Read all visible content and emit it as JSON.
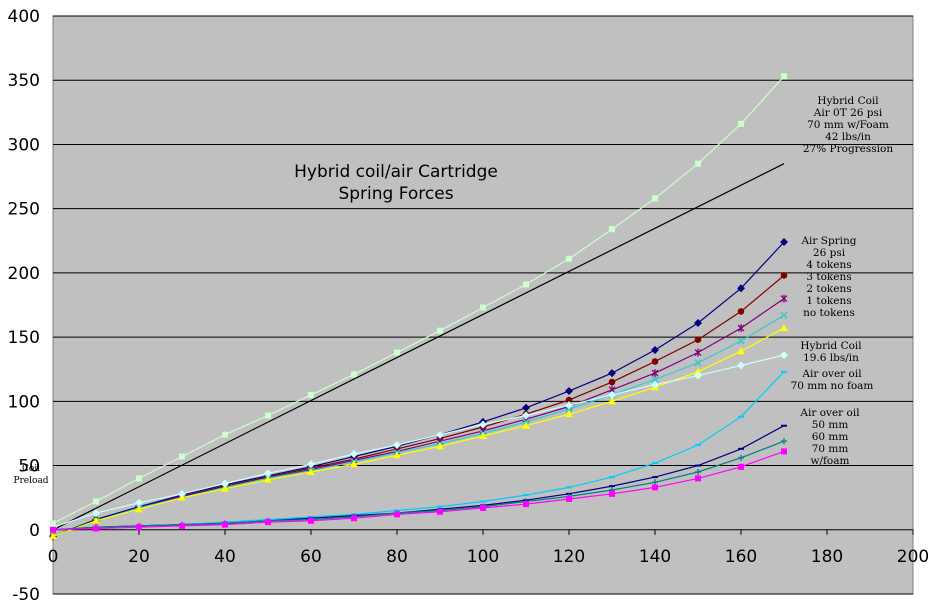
{
  "chart_data": {
    "type": "line",
    "title": [
      "Hybrid coil/air Cartridge",
      "Spring Forces"
    ],
    "xlim": [
      0,
      200
    ],
    "ylim": [
      -50,
      400
    ],
    "x_ticks": [
      "0",
      "20",
      "40",
      "60",
      "80",
      "100",
      "120",
      "140",
      "160",
      "180",
      "200"
    ],
    "y_ticks": [
      "-50",
      "0",
      "50",
      "100",
      "150",
      "200",
      "250",
      "300",
      "350",
      "400"
    ],
    "grid": "horizontal",
    "plot_background": "#c0c0c0",
    "series": [
      {
        "color": "#ccffcc",
        "marker": "square",
        "x": [
          0,
          10,
          20,
          30,
          40,
          50,
          60,
          70,
          80,
          90,
          100,
          110,
          120,
          130,
          140,
          150,
          160,
          170
        ],
        "y": [
          5,
          22,
          40,
          57,
          74,
          89,
          105,
          121,
          138,
          155,
          173,
          191,
          211,
          234,
          258,
          285,
          316,
          353
        ]
      },
      {
        "color": "#000000",
        "marker": "none",
        "x": [
          0,
          170
        ],
        "y": [
          0,
          285
        ]
      },
      {
        "color": "#000080",
        "marker": "diamond",
        "x": [
          0,
          10,
          20,
          30,
          40,
          50,
          60,
          70,
          80,
          90,
          100,
          110,
          120,
          130,
          140,
          150,
          160,
          170
        ],
        "y": [
          -5,
          8,
          18,
          27,
          35,
          42,
          49,
          57,
          65,
          74,
          84,
          95,
          108,
          122,
          140,
          161,
          188,
          224
        ]
      },
      {
        "color": "#800000",
        "marker": "circle",
        "x": [
          0,
          10,
          20,
          30,
          40,
          50,
          60,
          70,
          80,
          90,
          100,
          110,
          120,
          130,
          140,
          150,
          160,
          170
        ],
        "y": [
          -5,
          7,
          17,
          26,
          34,
          41,
          48,
          55,
          63,
          71,
          80,
          90,
          101,
          115,
          131,
          148,
          170,
          198
        ]
      },
      {
        "color": "#800080",
        "marker": "star",
        "x": [
          0,
          10,
          20,
          30,
          40,
          50,
          60,
          70,
          80,
          90,
          100,
          110,
          120,
          130,
          140,
          150,
          160,
          170
        ],
        "y": [
          -5,
          7,
          17,
          26,
          33,
          40,
          47,
          54,
          61,
          69,
          77,
          86,
          96,
          109,
          122,
          138,
          157,
          180
        ]
      },
      {
        "color": "#33cccc",
        "marker": "x",
        "x": [
          0,
          10,
          20,
          30,
          40,
          50,
          60,
          70,
          80,
          90,
          100,
          110,
          120,
          130,
          140,
          150,
          160,
          170
        ],
        "y": [
          -5,
          7,
          17,
          25,
          33,
          40,
          46,
          53,
          60,
          67,
          75,
          84,
          94,
          105,
          117,
          130,
          147,
          167
        ]
      },
      {
        "color": "#ffff00",
        "marker": "triangle",
        "x": [
          0,
          10,
          20,
          30,
          40,
          50,
          60,
          70,
          80,
          90,
          100,
          110,
          120,
          130,
          140,
          150,
          160,
          170
        ],
        "y": [
          -5,
          7,
          16,
          25,
          32,
          39,
          45,
          51,
          58,
          65,
          73,
          81,
          90,
          100,
          111,
          123,
          139,
          157
        ]
      },
      {
        "color": "#ccffff",
        "marker": "diamond",
        "x": [
          0,
          10,
          20,
          30,
          40,
          50,
          60,
          70,
          80,
          90,
          100,
          110,
          120,
          130,
          140,
          150,
          160,
          170
        ],
        "y": [
          2,
          13,
          21,
          28,
          36,
          44,
          51,
          59,
          66,
          74,
          82,
          89,
          97,
          105,
          113,
          120,
          128,
          136
        ]
      },
      {
        "color": "#00ccff",
        "marker": "dash",
        "x": [
          0,
          10,
          20,
          30,
          40,
          50,
          60,
          70,
          80,
          90,
          100,
          110,
          120,
          130,
          140,
          150,
          160,
          170
        ],
        "y": [
          0,
          2,
          3,
          4,
          6,
          8,
          10,
          12,
          15,
          18,
          22,
          27,
          33,
          41,
          52,
          66,
          88,
          123
        ]
      },
      {
        "color": "#000080",
        "marker": "dash",
        "x": [
          0,
          10,
          20,
          30,
          40,
          50,
          60,
          70,
          80,
          90,
          100,
          110,
          120,
          130,
          140,
          150,
          160,
          170
        ],
        "y": [
          0,
          2,
          3,
          4,
          5,
          7,
          9,
          11,
          13,
          16,
          19,
          23,
          28,
          34,
          41,
          50,
          63,
          81
        ]
      },
      {
        "color": "#008080",
        "marker": "plus",
        "x": [
          0,
          10,
          20,
          30,
          40,
          50,
          60,
          70,
          80,
          90,
          100,
          110,
          120,
          130,
          140,
          150,
          160,
          170
        ],
        "y": [
          0,
          2,
          3,
          4,
          5,
          7,
          8,
          10,
          13,
          15,
          18,
          22,
          26,
          31,
          37,
          45,
          56,
          69
        ]
      },
      {
        "color": "#ff00ff",
        "marker": "square",
        "x": [
          0,
          10,
          20,
          30,
          40,
          50,
          60,
          70,
          80,
          90,
          100,
          110,
          120,
          130,
          140,
          150,
          160,
          170
        ],
        "y": [
          0,
          1,
          2,
          3,
          4,
          6,
          7,
          9,
          12,
          14,
          17,
          20,
          24,
          28,
          33,
          40,
          49,
          61
        ]
      }
    ],
    "annotations": [
      {
        "lines": [
          "Hybrid Coil",
          "Air 0T 26 psi",
          "70 mm w/Foam",
          "42 lbs/in",
          "27% Progression"
        ]
      },
      {
        "lines": [
          "Air Spring",
          "26 psi",
          "4 tokens",
          "3 tokens",
          "2 tokens",
          "1 tokens",
          "no tokens"
        ]
      },
      {
        "lines": [
          "Hybrid Coil",
          "19.6 lbs/in"
        ]
      },
      {
        "lines": [
          "Air over oil",
          "70 mm no foam"
        ]
      },
      {
        "lines": [
          "Air over oil",
          "50 mm",
          "60 mm",
          "70 mm",
          "w/foam"
        ]
      },
      {
        "lines": [
          "Coil",
          "Preload"
        ]
      }
    ]
  }
}
